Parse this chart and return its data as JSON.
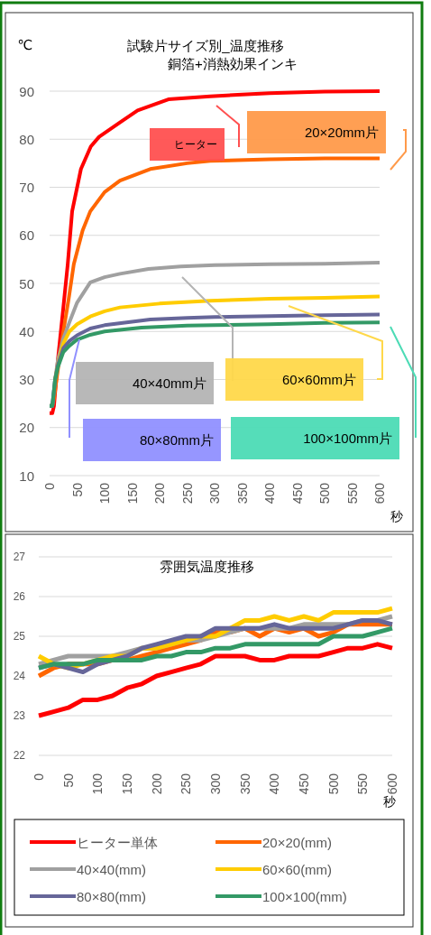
{
  "chart_data": [
    {
      "type": "line",
      "title": "試験片サイズ別_温度推移",
      "subtitle": "銅箔+消熱効果インキ",
      "ylabel": "℃",
      "xlabel": "秒",
      "xlim": [
        0,
        600
      ],
      "xticks": [
        0,
        50,
        100,
        150,
        200,
        250,
        300,
        350,
        400,
        450,
        500,
        550,
        600
      ],
      "ylim": [
        10,
        90
      ],
      "yticks": [
        10,
        20,
        30,
        40,
        50,
        60,
        70,
        80,
        90
      ],
      "grid": "y",
      "legend": false,
      "marker": "none",
      "line_style": "solid",
      "annotations": [
        "ヒーター",
        "20×20mm片",
        "40×40mm片",
        "60×60mm片",
        "80×80mm片",
        "100×100mm片"
      ],
      "series": [
        {
          "color": "#ff0000",
          "x": [
            0,
            5,
            8,
            15,
            25,
            33,
            41,
            57,
            75,
            90,
            128,
            160,
            216,
            292,
            350,
            400,
            500,
            600
          ],
          "values": [
            23,
            23,
            24.5,
            34,
            45,
            54,
            65,
            73.8,
            78.5,
            80.5,
            83.5,
            86,
            88.3,
            88.9,
            89.3,
            89.6,
            89.9,
            90
          ]
        },
        {
          "color": "#ff6600",
          "x": [
            0,
            5,
            8,
            15,
            25,
            35,
            44,
            60,
            74,
            100,
            128,
            183,
            250,
            292,
            400,
            500,
            600
          ],
          "values": [
            24.5,
            24.5,
            26,
            32,
            40,
            47,
            54,
            61,
            65,
            69,
            71.4,
            73.8,
            75,
            75.5,
            75.8,
            76,
            76
          ]
        },
        {
          "color": "#a0a0a0",
          "x": [
            0,
            5,
            10,
            15,
            25,
            36,
            50,
            74,
            100,
            128,
            180,
            238,
            300,
            400,
            500,
            600
          ],
          "values": [
            24.5,
            24.5,
            30,
            34,
            38.5,
            41.9,
            46,
            50.2,
            51.3,
            52,
            53,
            53.5,
            53.8,
            54,
            54.1,
            54.3
          ]
        },
        {
          "color": "#ffcc00",
          "x": [
            10,
            15,
            25,
            36,
            50,
            74,
            100,
            128,
            200,
            292,
            400,
            500,
            600
          ],
          "values": [
            30,
            33,
            37.5,
            40,
            41.5,
            43.1,
            44.2,
            45,
            45.8,
            46.4,
            46.8,
            47,
            47.3
          ]
        },
        {
          "color": "#666699",
          "x": [
            0,
            5,
            10,
            15,
            25,
            36,
            50,
            74,
            100,
            183,
            250,
            300,
            400,
            500,
            600
          ],
          "values": [
            24.5,
            24.5,
            30,
            33,
            36.5,
            38,
            39.2,
            40.6,
            41.3,
            42.5,
            42.8,
            43,
            43.2,
            43.4,
            43.5
          ]
        },
        {
          "color": "#339966",
          "x": [
            0,
            5,
            10,
            15,
            25,
            36,
            50,
            74,
            100,
            167,
            250,
            300,
            400,
            500,
            600
          ],
          "values": [
            24.5,
            24.5,
            30,
            32.5,
            35.7,
            37,
            38.3,
            39.3,
            40,
            40.8,
            41.2,
            41.3,
            41.5,
            41.8,
            41.9
          ]
        }
      ]
    },
    {
      "type": "line",
      "title": "雰囲気温度推移",
      "xlabel": "秒",
      "xlim": [
        0,
        600
      ],
      "xticks": [
        0,
        50,
        100,
        150,
        200,
        250,
        300,
        350,
        400,
        450,
        500,
        550,
        600
      ],
      "ylim": [
        22,
        27
      ],
      "yticks": [
        22,
        23,
        24,
        25,
        26,
        27
      ],
      "grid": "y",
      "legend": "bottom",
      "marker": "none",
      "line_style": "solid",
      "x": [
        0,
        25,
        50,
        75,
        100,
        125,
        150,
        175,
        200,
        225,
        250,
        275,
        300,
        325,
        350,
        375,
        400,
        425,
        450,
        475,
        500,
        525,
        550,
        575,
        600
      ],
      "series": [
        {
          "name": "ヒーター単体",
          "color": "#ff0000",
          "values": [
            23,
            23.1,
            23.2,
            23.4,
            23.4,
            23.5,
            23.7,
            23.8,
            24.0,
            24.1,
            24.2,
            24.3,
            24.5,
            24.5,
            24.5,
            24.4,
            24.4,
            24.5,
            24.5,
            24.5,
            24.6,
            24.7,
            24.7,
            24.8,
            24.7
          ]
        },
        {
          "name": "20×20(mm)",
          "color": "#ff6600",
          "values": [
            24.0,
            24.2,
            24.3,
            24.3,
            24.3,
            24.4,
            24.4,
            24.5,
            24.6,
            24.7,
            24.8,
            24.9,
            25.1,
            25.1,
            25.2,
            25.0,
            25.2,
            25.1,
            25.2,
            25.0,
            25.1,
            25.3,
            25.3,
            25.3,
            25.3
          ]
        },
        {
          "name": "40×40(mm)",
          "color": "#a0a0a0",
          "values": [
            24.3,
            24.4,
            24.5,
            24.5,
            24.5,
            24.5,
            24.6,
            24.7,
            24.7,
            24.8,
            24.9,
            24.9,
            25.0,
            25.1,
            25.2,
            25.2,
            25.2,
            25.2,
            25.3,
            25.3,
            25.3,
            25.3,
            25.4,
            25.4,
            25.5
          ]
        },
        {
          "name": "60×60(mm)",
          "color": "#ffcc00",
          "values": [
            24.5,
            24.3,
            24.2,
            24.3,
            24.4,
            24.5,
            24.5,
            24.7,
            24.7,
            24.8,
            24.9,
            25.0,
            25.0,
            25.2,
            25.4,
            25.4,
            25.5,
            25.4,
            25.5,
            25.4,
            25.6,
            25.6,
            25.6,
            25.6,
            25.7
          ]
        },
        {
          "name": "80×80(mm)",
          "color": "#666699",
          "values": [
            24.2,
            24.3,
            24.2,
            24.1,
            24.3,
            24.4,
            24.5,
            24.7,
            24.8,
            24.9,
            25.0,
            25.0,
            25.2,
            25.2,
            25.2,
            25.2,
            25.3,
            25.2,
            25.2,
            25.2,
            25.2,
            25.3,
            25.4,
            25.4,
            25.3
          ]
        },
        {
          "name": "100×100(mm)",
          "color": "#339966",
          "values": [
            24.2,
            24.3,
            24.3,
            24.3,
            24.4,
            24.4,
            24.4,
            24.4,
            24.5,
            24.5,
            24.6,
            24.6,
            24.7,
            24.7,
            24.8,
            24.8,
            24.8,
            24.8,
            24.8,
            24.8,
            25.0,
            25.0,
            25.0,
            25.1,
            25.2
          ]
        }
      ]
    }
  ]
}
